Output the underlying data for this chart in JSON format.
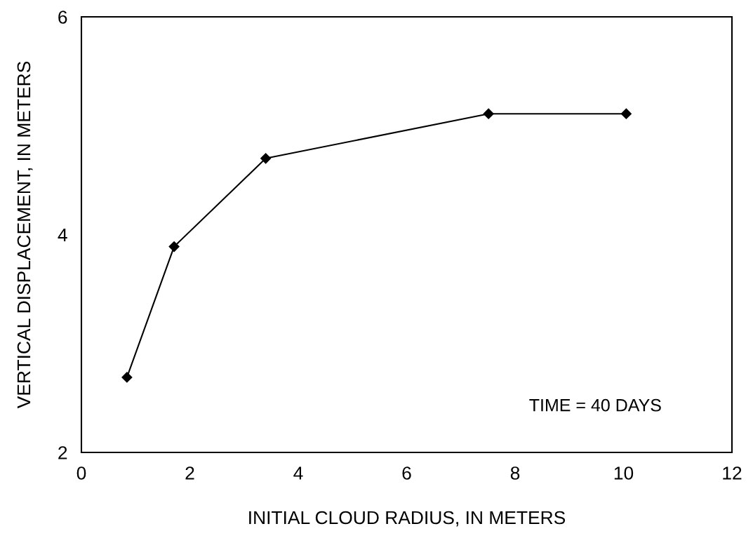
{
  "chart_data": {
    "type": "line",
    "xlabel": "INITIAL CLOUD RADIUS, IN METERS",
    "ylabel": "VERTICAL DISPLACEMENT, IN METERS",
    "x": [
      0.84,
      1.71,
      3.4,
      7.51,
      10.05
    ],
    "series": [
      {
        "color": "#000000",
        "values": [
          2.69,
          3.89,
          4.7,
          5.11,
          5.11
        ]
      }
    ],
    "marker": "diamond",
    "line_style": "solid",
    "xlim": [
      0,
      12
    ],
    "xticks": [
      0,
      2,
      4,
      6,
      8,
      10,
      12
    ],
    "ylim": [
      2,
      6
    ],
    "yticks": [
      2,
      4,
      6
    ],
    "grid": false,
    "annotations": [
      "TIME = 40 DAYS"
    ]
  }
}
